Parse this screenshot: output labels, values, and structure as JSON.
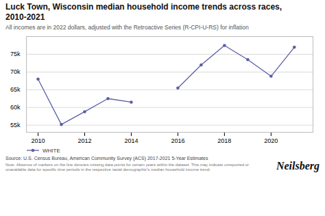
{
  "chart_data": {
    "type": "line",
    "title": "Luck Town, Wisconsin median household income trends across races,\n2010-2021",
    "subtitle": "All incomes are in 2022 dollars, adjusted with the Retroactive Series (R-CPI-U-RS) for inflation",
    "x": [
      2010,
      2011,
      2012,
      2013,
      2014,
      2015,
      2016,
      2017,
      2018,
      2019,
      2020,
      2021
    ],
    "series": [
      {
        "name": "WHITE",
        "color": "#5b5ea6",
        "marker": "circle",
        "values": [
          68000,
          55200,
          58800,
          62500,
          61500,
          null,
          65500,
          72000,
          77500,
          73500,
          68800,
          77000
        ]
      }
    ],
    "xlim": [
      2009.5,
      2021.8
    ],
    "xticks": [
      2010,
      2012,
      2014,
      2016,
      2018,
      2020
    ],
    "ylim": [
      53000,
      80000
    ],
    "yticks": [
      {
        "value": 55000,
        "label": "55k"
      },
      {
        "value": 60000,
        "label": "60k"
      },
      {
        "value": 65000,
        "label": "65k"
      },
      {
        "value": 70000,
        "label": "70k"
      },
      {
        "value": 75000,
        "label": "75k"
      }
    ],
    "grid": "y",
    "legend": "bottom",
    "annotations": [
      "Source: U.S. Census Bureau, American Community Survey (ACS) 2017-2021 5-Year Estimates",
      "Note: Absence of markers on the line denotes missing data points for certain years within the dataset. This may indicate unreported or unavailable data for specific time periods in the respective racial demographic's median household income trend.",
      "Neilsberg"
    ]
  }
}
